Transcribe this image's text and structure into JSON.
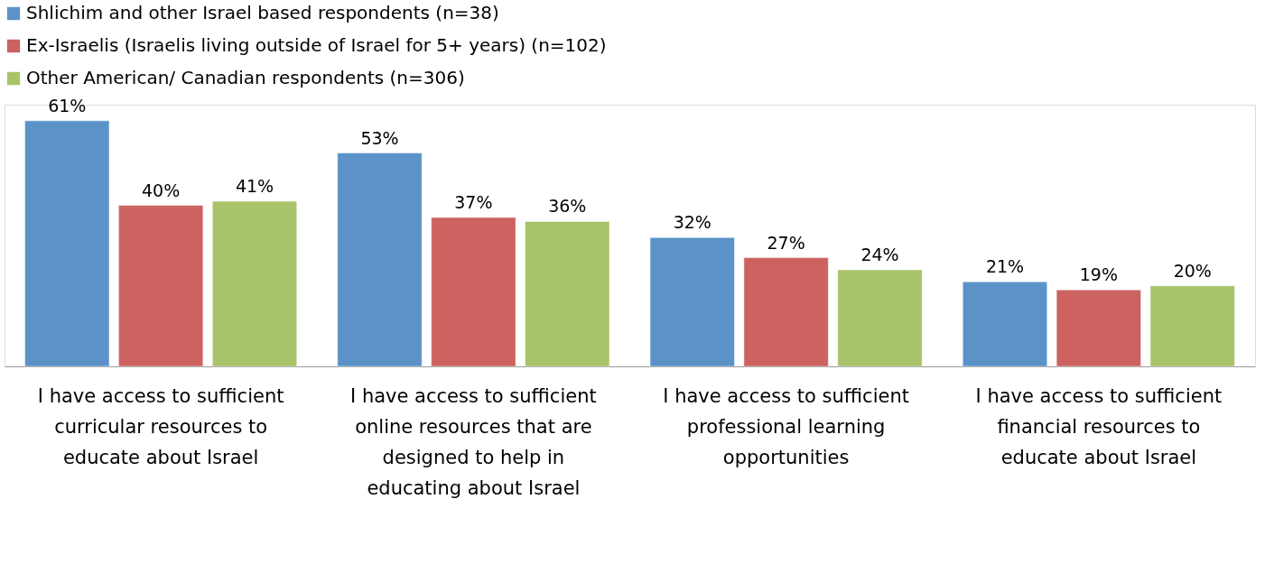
{
  "chart_data": {
    "type": "bar",
    "categories": [
      "I have access to sufficient\ncurricular resources to\neducate about Israel",
      "I have access to sufficient\nonline resources that are\ndesigned to help in\neducating about Israel",
      "I have access to sufficient\nprofessional learning\nopportunities",
      "I have access to sufficient\nfinancial resources to\neducate about Israel"
    ],
    "series": [
      {
        "name": "Shlichim and other Israel based respondents (n=38)",
        "color": "#5b93c8",
        "values": [
          61,
          53,
          32,
          21
        ],
        "value_labels": [
          "61%",
          "53%",
          "32%",
          "21%"
        ]
      },
      {
        "name": "Ex-Israelis (Israelis living outside of Israel for 5+ years) (n=102)",
        "color": "#cc6360",
        "values": [
          40,
          37,
          27,
          19
        ],
        "value_labels": [
          "40%",
          "37%",
          "27%",
          "19%"
        ]
      },
      {
        "name": "Other American/ Canadian respondents (n=306)",
        "color": "#a9c36a",
        "values": [
          41,
          36,
          24,
          20
        ],
        "value_labels": [
          "41%",
          "36%",
          "24%",
          "20%"
        ]
      }
    ],
    "legend": "top",
    "grid": false
  }
}
